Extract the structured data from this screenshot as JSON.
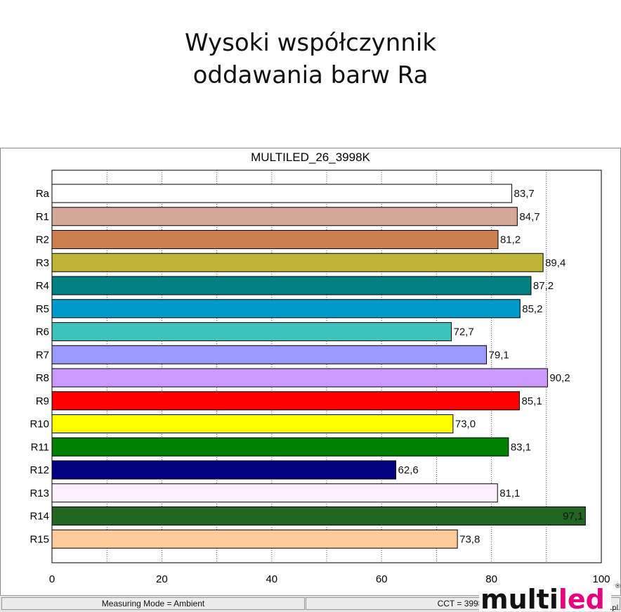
{
  "header": {
    "title_line1": "Wysoki współczynnik",
    "title_line2": "oddawania barw Ra"
  },
  "chart_data": {
    "type": "bar",
    "orientation": "horizontal",
    "title": "MULTILED_26_3998K",
    "categories": [
      "Ra",
      "R1",
      "R2",
      "R3",
      "R4",
      "R5",
      "R6",
      "R7",
      "R8",
      "R9",
      "R10",
      "R11",
      "R12",
      "R13",
      "R14",
      "R15"
    ],
    "values": [
      83.7,
      84.7,
      81.2,
      89.4,
      87.2,
      85.2,
      72.7,
      79.1,
      90.2,
      85.1,
      73.0,
      83.1,
      62.6,
      81.1,
      97.1,
      73.8
    ],
    "value_labels": [
      "83,7",
      "84,7",
      "81,2",
      "89,4",
      "87,2",
      "85,2",
      "72,7",
      "79,1",
      "90,2",
      "85,1",
      "73,0",
      "83,1",
      "62,6",
      "81,1",
      "97,1",
      "73,8"
    ],
    "colors": [
      "#ffffff",
      "#d4a896",
      "#cc8050",
      "#c0b436",
      "#008080",
      "#0099cc",
      "#3cc4bc",
      "#9999ff",
      "#cc99ff",
      "#ff0000",
      "#ffff00",
      "#008000",
      "#000080",
      "#fff0ff",
      "#226622",
      "#ffcc99"
    ],
    "xlim": [
      0,
      100
    ],
    "xticks": [
      "0",
      "20",
      "40",
      "60",
      "80",
      "100"
    ],
    "grid": true
  },
  "status_bar": {
    "left": "Measuring Mode = Ambient",
    "right": "CCT = 3998K"
  },
  "logo": {
    "text": "multiled",
    "suffix": ".pl",
    "mark": "®",
    "accent": "#e6007e"
  }
}
